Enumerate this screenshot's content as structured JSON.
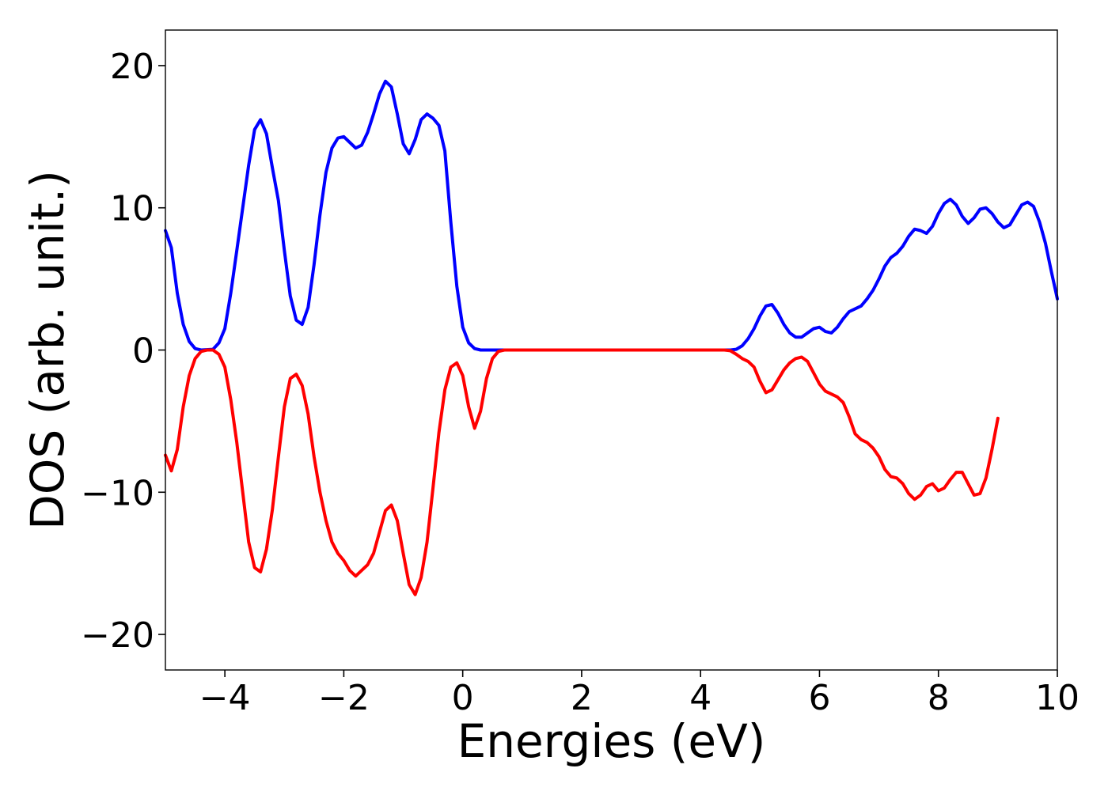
{
  "chart_data": {
    "type": "line",
    "title": "",
    "xlabel": "Energies (eV)",
    "ylabel": "DOS (arb. unit.)",
    "xlim": [
      -5,
      10
    ],
    "ylim": [
      -22.5,
      22.5
    ],
    "xticks": [
      -4,
      -2,
      0,
      2,
      4,
      6,
      8,
      10
    ],
    "xtick_labels": [
      "−4",
      "−2",
      "0",
      "2",
      "4",
      "6",
      "8",
      "10"
    ],
    "yticks": [
      -20,
      -10,
      0,
      10,
      20
    ],
    "ytick_labels": [
      "−20",
      "−10",
      "0",
      "10",
      "20"
    ],
    "grid": false,
    "legend": "none",
    "series": [
      {
        "color": "#0000ff",
        "points": [
          [
            -5.0,
            8.4
          ],
          [
            -4.9,
            7.2
          ],
          [
            -4.8,
            4.0
          ],
          [
            -4.7,
            1.8
          ],
          [
            -4.6,
            0.6
          ],
          [
            -4.5,
            0.1
          ],
          [
            -4.4,
            0.0
          ],
          [
            -4.2,
            0.05
          ],
          [
            -4.1,
            0.5
          ],
          [
            -4.0,
            1.5
          ],
          [
            -3.9,
            4.0
          ],
          [
            -3.8,
            7.0
          ],
          [
            -3.7,
            10.0
          ],
          [
            -3.6,
            13.0
          ],
          [
            -3.5,
            15.5
          ],
          [
            -3.4,
            16.2
          ],
          [
            -3.3,
            15.2
          ],
          [
            -3.2,
            12.8
          ],
          [
            -3.1,
            10.5
          ],
          [
            -3.0,
            7.0
          ],
          [
            -2.9,
            3.8
          ],
          [
            -2.8,
            2.1
          ],
          [
            -2.7,
            1.8
          ],
          [
            -2.6,
            3.0
          ],
          [
            -2.5,
            6.0
          ],
          [
            -2.4,
            9.5
          ],
          [
            -2.3,
            12.5
          ],
          [
            -2.2,
            14.2
          ],
          [
            -2.1,
            14.9
          ],
          [
            -2.0,
            15.0
          ],
          [
            -1.9,
            14.6
          ],
          [
            -1.8,
            14.2
          ],
          [
            -1.7,
            14.4
          ],
          [
            -1.6,
            15.3
          ],
          [
            -1.5,
            16.6
          ],
          [
            -1.4,
            18.0
          ],
          [
            -1.3,
            18.9
          ],
          [
            -1.2,
            18.5
          ],
          [
            -1.1,
            16.6
          ],
          [
            -1.0,
            14.5
          ],
          [
            -0.9,
            13.8
          ],
          [
            -0.8,
            14.8
          ],
          [
            -0.7,
            16.2
          ],
          [
            -0.6,
            16.6
          ],
          [
            -0.5,
            16.3
          ],
          [
            -0.4,
            15.8
          ],
          [
            -0.3,
            14.0
          ],
          [
            -0.2,
            9.0
          ],
          [
            -0.1,
            4.5
          ],
          [
            0.0,
            1.6
          ],
          [
            0.1,
            0.5
          ],
          [
            0.2,
            0.1
          ],
          [
            0.3,
            0.0
          ],
          [
            1.0,
            0.0
          ],
          [
            2.0,
            0.0
          ],
          [
            3.0,
            0.0
          ],
          [
            4.0,
            0.0
          ],
          [
            4.5,
            0.0
          ],
          [
            4.6,
            0.05
          ],
          [
            4.7,
            0.3
          ],
          [
            4.8,
            0.8
          ],
          [
            4.9,
            1.5
          ],
          [
            5.0,
            2.4
          ],
          [
            5.1,
            3.1
          ],
          [
            5.2,
            3.2
          ],
          [
            5.3,
            2.6
          ],
          [
            5.4,
            1.8
          ],
          [
            5.5,
            1.2
          ],
          [
            5.6,
            0.9
          ],
          [
            5.7,
            0.9
          ],
          [
            5.8,
            1.2
          ],
          [
            5.9,
            1.5
          ],
          [
            6.0,
            1.6
          ],
          [
            6.1,
            1.3
          ],
          [
            6.2,
            1.2
          ],
          [
            6.3,
            1.6
          ],
          [
            6.4,
            2.2
          ],
          [
            6.5,
            2.7
          ],
          [
            6.6,
            2.9
          ],
          [
            6.7,
            3.1
          ],
          [
            6.8,
            3.6
          ],
          [
            6.9,
            4.2
          ],
          [
            7.0,
            5.0
          ],
          [
            7.1,
            5.9
          ],
          [
            7.2,
            6.5
          ],
          [
            7.3,
            6.8
          ],
          [
            7.4,
            7.3
          ],
          [
            7.5,
            8.0
          ],
          [
            7.6,
            8.5
          ],
          [
            7.7,
            8.4
          ],
          [
            7.8,
            8.2
          ],
          [
            7.9,
            8.7
          ],
          [
            8.0,
            9.6
          ],
          [
            8.1,
            10.3
          ],
          [
            8.2,
            10.6
          ],
          [
            8.3,
            10.2
          ],
          [
            8.4,
            9.4
          ],
          [
            8.5,
            8.9
          ],
          [
            8.6,
            9.3
          ],
          [
            8.7,
            9.9
          ],
          [
            8.8,
            10.0
          ],
          [
            8.9,
            9.6
          ],
          [
            9.0,
            9.0
          ],
          [
            9.1,
            8.6
          ],
          [
            9.2,
            8.8
          ],
          [
            9.3,
            9.5
          ],
          [
            9.4,
            10.2
          ],
          [
            9.5,
            10.4
          ],
          [
            9.6,
            10.1
          ],
          [
            9.7,
            9.0
          ],
          [
            9.8,
            7.5
          ],
          [
            9.9,
            5.5
          ],
          [
            10.0,
            3.6
          ]
        ]
      },
      {
        "color": "#ff0000",
        "points": [
          [
            -5.0,
            -7.4
          ],
          [
            -4.9,
            -8.5
          ],
          [
            -4.8,
            -7.0
          ],
          [
            -4.7,
            -4.0
          ],
          [
            -4.6,
            -1.8
          ],
          [
            -4.5,
            -0.6
          ],
          [
            -4.4,
            -0.1
          ],
          [
            -4.3,
            0.0
          ],
          [
            -4.2,
            0.0
          ],
          [
            -4.1,
            -0.3
          ],
          [
            -4.0,
            -1.2
          ],
          [
            -3.9,
            -3.5
          ],
          [
            -3.8,
            -6.5
          ],
          [
            -3.7,
            -10.0
          ],
          [
            -3.6,
            -13.5
          ],
          [
            -3.5,
            -15.3
          ],
          [
            -3.4,
            -15.6
          ],
          [
            -3.3,
            -14.0
          ],
          [
            -3.2,
            -11.2
          ],
          [
            -3.1,
            -7.5
          ],
          [
            -3.0,
            -4.0
          ],
          [
            -2.9,
            -2.0
          ],
          [
            -2.8,
            -1.7
          ],
          [
            -2.7,
            -2.5
          ],
          [
            -2.6,
            -4.5
          ],
          [
            -2.5,
            -7.5
          ],
          [
            -2.4,
            -10.0
          ],
          [
            -2.3,
            -12.0
          ],
          [
            -2.2,
            -13.5
          ],
          [
            -2.1,
            -14.3
          ],
          [
            -2.0,
            -14.8
          ],
          [
            -1.9,
            -15.5
          ],
          [
            -1.8,
            -15.9
          ],
          [
            -1.7,
            -15.5
          ],
          [
            -1.6,
            -15.1
          ],
          [
            -1.5,
            -14.3
          ],
          [
            -1.4,
            -12.8
          ],
          [
            -1.3,
            -11.3
          ],
          [
            -1.2,
            -10.9
          ],
          [
            -1.1,
            -12.0
          ],
          [
            -1.0,
            -14.3
          ],
          [
            -0.9,
            -16.5
          ],
          [
            -0.8,
            -17.2
          ],
          [
            -0.7,
            -16.0
          ],
          [
            -0.6,
            -13.5
          ],
          [
            -0.5,
            -9.7
          ],
          [
            -0.4,
            -5.8
          ],
          [
            -0.3,
            -2.8
          ],
          [
            -0.2,
            -1.2
          ],
          [
            -0.1,
            -0.9
          ],
          [
            0.0,
            -1.8
          ],
          [
            0.1,
            -4.0
          ],
          [
            0.2,
            -5.5
          ],
          [
            0.3,
            -4.3
          ],
          [
            0.4,
            -2.0
          ],
          [
            0.5,
            -0.6
          ],
          [
            0.6,
            -0.1
          ],
          [
            0.7,
            0.0
          ],
          [
            1.0,
            0.0
          ],
          [
            2.0,
            0.0
          ],
          [
            3.0,
            0.0
          ],
          [
            4.0,
            0.0
          ],
          [
            4.4,
            0.0
          ],
          [
            4.5,
            -0.05
          ],
          [
            4.6,
            -0.3
          ],
          [
            4.7,
            -0.6
          ],
          [
            4.8,
            -0.8
          ],
          [
            4.9,
            -1.2
          ],
          [
            5.0,
            -2.2
          ],
          [
            5.1,
            -3.0
          ],
          [
            5.2,
            -2.8
          ],
          [
            5.3,
            -2.1
          ],
          [
            5.4,
            -1.4
          ],
          [
            5.5,
            -0.9
          ],
          [
            5.6,
            -0.6
          ],
          [
            5.7,
            -0.5
          ],
          [
            5.8,
            -0.8
          ],
          [
            5.9,
            -1.6
          ],
          [
            6.0,
            -2.4
          ],
          [
            6.1,
            -2.9
          ],
          [
            6.2,
            -3.1
          ],
          [
            6.3,
            -3.3
          ],
          [
            6.4,
            -3.7
          ],
          [
            6.5,
            -4.7
          ],
          [
            6.6,
            -5.9
          ],
          [
            6.7,
            -6.3
          ],
          [
            6.8,
            -6.5
          ],
          [
            6.9,
            -6.9
          ],
          [
            7.0,
            -7.5
          ],
          [
            7.1,
            -8.4
          ],
          [
            7.2,
            -8.9
          ],
          [
            7.3,
            -9.0
          ],
          [
            7.4,
            -9.4
          ],
          [
            7.5,
            -10.1
          ],
          [
            7.6,
            -10.5
          ],
          [
            7.7,
            -10.2
          ],
          [
            7.8,
            -9.6
          ],
          [
            7.9,
            -9.4
          ],
          [
            8.0,
            -9.9
          ],
          [
            8.1,
            -9.7
          ],
          [
            8.2,
            -9.1
          ],
          [
            8.3,
            -8.6
          ],
          [
            8.4,
            -8.6
          ],
          [
            8.5,
            -9.4
          ],
          [
            8.6,
            -10.2
          ],
          [
            8.7,
            -10.1
          ],
          [
            8.8,
            -9.0
          ],
          [
            8.9,
            -7.0
          ],
          [
            9.0,
            -4.8
          ]
        ]
      }
    ]
  }
}
